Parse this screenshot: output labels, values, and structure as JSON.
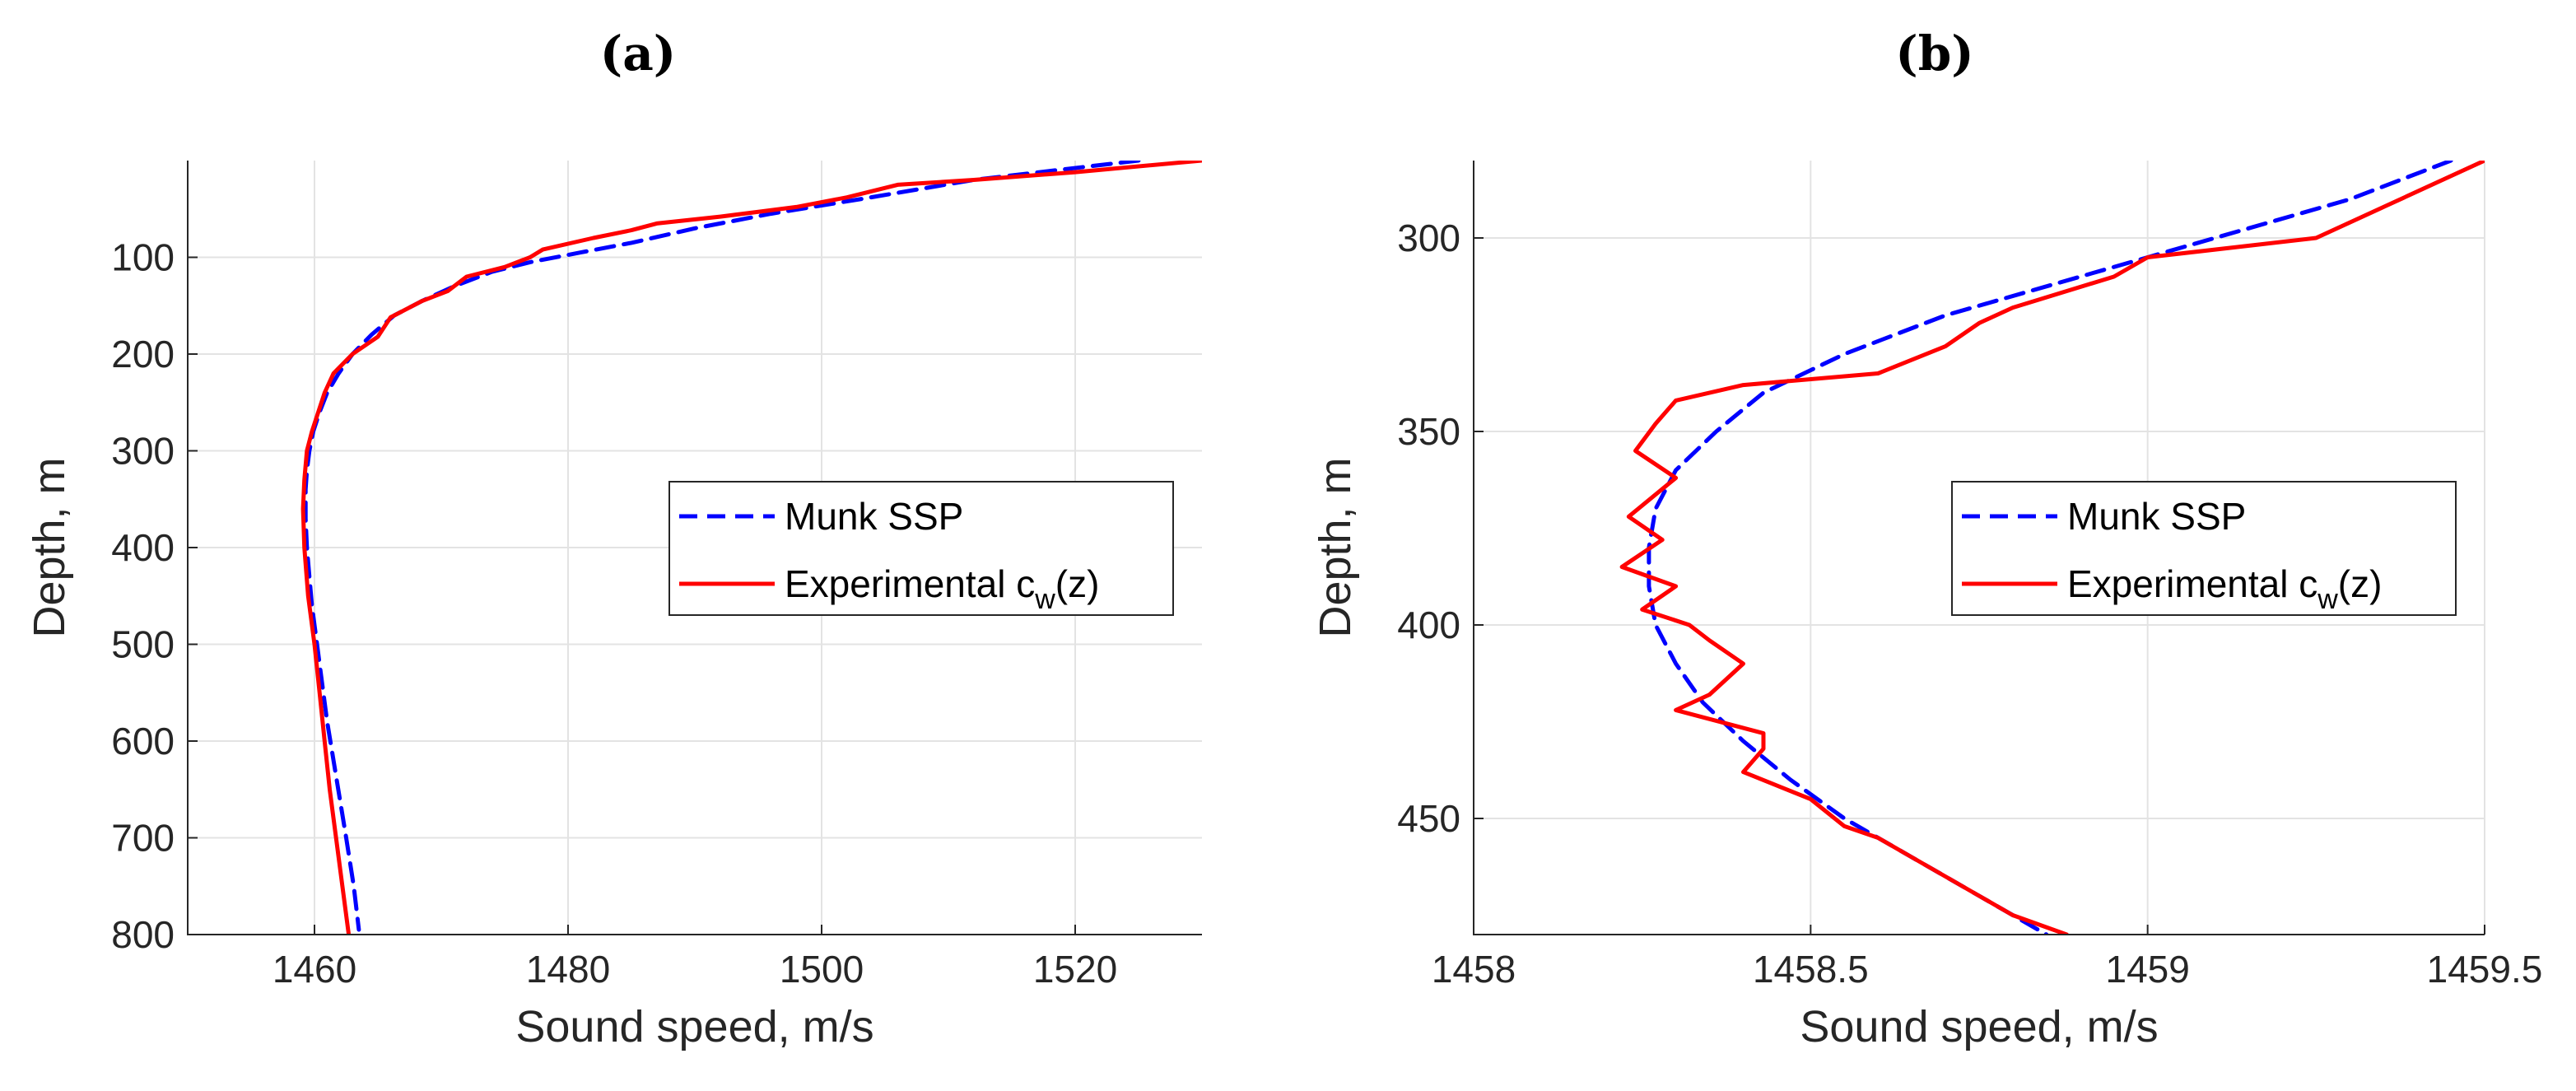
{
  "chart_data": [
    {
      "type": "line",
      "panel_label": "(a)",
      "xlabel": "Sound speed, m/s",
      "ylabel": "Depth, m",
      "xlim": [
        1450,
        1530
      ],
      "ylim": [
        0,
        800
      ],
      "y_reversed": true,
      "xticks": [
        1460,
        1480,
        1500,
        1520
      ],
      "yticks": [
        100,
        200,
        300,
        400,
        500,
        600,
        700,
        800
      ],
      "grid": true,
      "legend_position": "right",
      "legend": [
        {
          "label": "Munk SSP",
          "style": "dashed",
          "color": "#0000ff"
        },
        {
          "label_main": "Experimental c",
          "label_sub": "w",
          "label_tail": "(z)",
          "style": "solid",
          "color": "#ff0000"
        }
      ],
      "series": [
        {
          "name": "Munk SSP",
          "x": [
            1525.0,
            1512.0,
            1503.0,
            1496.0,
            1490.0,
            1485.0,
            1481.0,
            1477.0,
            1474.0,
            1471.0,
            1468.5,
            1466.3,
            1464.5,
            1463.0,
            1461.9,
            1461.0,
            1460.4,
            1459.9,
            1459.6,
            1459.4,
            1459.3,
            1459.3,
            1459.4,
            1459.6,
            1459.8,
            1460.2,
            1460.6,
            1461.0,
            1461.5,
            1462.0,
            1462.5,
            1463.1,
            1463.5
          ],
          "y": [
            0,
            20,
            40,
            55,
            70,
            85,
            95,
            105,
            115,
            130,
            145,
            160,
            180,
            200,
            220,
            240,
            260,
            280,
            300,
            320,
            340,
            370,
            400,
            430,
            460,
            500,
            540,
            580,
            620,
            660,
            700,
            750,
            795
          ]
        },
        {
          "name": "Experimental cw(z)",
          "x": [
            1530.0,
            1520.0,
            1512.0,
            1506.0,
            1502.0,
            1498.0,
            1492.0,
            1487.0,
            1485.0,
            1482.0,
            1478.0,
            1477.0,
            1475.0,
            1472.0,
            1470.5,
            1468.5,
            1466.0,
            1465.5,
            1465.0,
            1463.0,
            1461.5,
            1460.8,
            1460.3,
            1459.8,
            1459.4,
            1459.2,
            1459.1,
            1459.2,
            1459.5,
            1460.0,
            1460.4,
            1460.8,
            1461.2,
            1461.7,
            1462.2,
            1462.7
          ],
          "y": [
            0,
            12,
            20,
            25,
            38,
            48,
            58,
            65,
            72,
            80,
            92,
            100,
            110,
            120,
            135,
            145,
            162,
            172,
            182,
            200,
            220,
            240,
            260,
            280,
            300,
            330,
            360,
            400,
            450,
            500,
            550,
            600,
            650,
            700,
            750,
            800
          ]
        }
      ]
    },
    {
      "type": "line",
      "panel_label": "(b)",
      "xlabel": "Sound speed, m/s",
      "ylabel": "Depth, m",
      "xlim": [
        1458,
        1459.5
      ],
      "ylim": [
        280,
        480
      ],
      "y_reversed": true,
      "xticks": [
        1458,
        1458.5,
        1459,
        1459.5
      ],
      "yticks": [
        300,
        350,
        400,
        450
      ],
      "grid": true,
      "legend_position": "right",
      "legend": [
        {
          "label": "Munk SSP",
          "style": "dashed",
          "color": "#0000ff"
        },
        {
          "label_main": "Experimental c",
          "label_sub": "w",
          "label_tail": "(z)",
          "style": "solid",
          "color": "#ff0000"
        }
      ],
      "series": [
        {
          "name": "Munk SSP",
          "x": [
            1459.45,
            1459.3,
            1459.1,
            1458.9,
            1458.7,
            1458.55,
            1458.43,
            1458.36,
            1458.3,
            1458.27,
            1458.26,
            1458.26,
            1458.27,
            1458.3,
            1458.34,
            1458.4,
            1458.47,
            1458.55,
            1458.65,
            1458.75,
            1458.85
          ],
          "y": [
            280,
            290,
            300,
            310,
            320,
            330,
            340,
            350,
            360,
            370,
            380,
            390,
            400,
            410,
            420,
            430,
            440,
            450,
            460,
            470,
            480
          ]
        },
        {
          "name": "Experimental cw(z)",
          "x": [
            1459.5,
            1459.35,
            1459.25,
            1459.0,
            1458.95,
            1458.8,
            1458.75,
            1458.7,
            1458.6,
            1458.4,
            1458.3,
            1458.27,
            1458.24,
            1458.3,
            1458.23,
            1458.28,
            1458.22,
            1458.3,
            1458.25,
            1458.32,
            1458.35,
            1458.4,
            1458.35,
            1458.3,
            1458.43,
            1458.43,
            1458.4,
            1458.5,
            1458.55,
            1458.6,
            1458.65,
            1458.7,
            1458.75,
            1458.8,
            1458.88
          ],
          "y": [
            280,
            292,
            300,
            305,
            310,
            318,
            322,
            328,
            335,
            338,
            342,
            348,
            355,
            362,
            372,
            378,
            385,
            390,
            396,
            400,
            404,
            410,
            418,
            422,
            428,
            432,
            438,
            445,
            452,
            455,
            460,
            465,
            470,
            475,
            480
          ]
        }
      ]
    }
  ]
}
